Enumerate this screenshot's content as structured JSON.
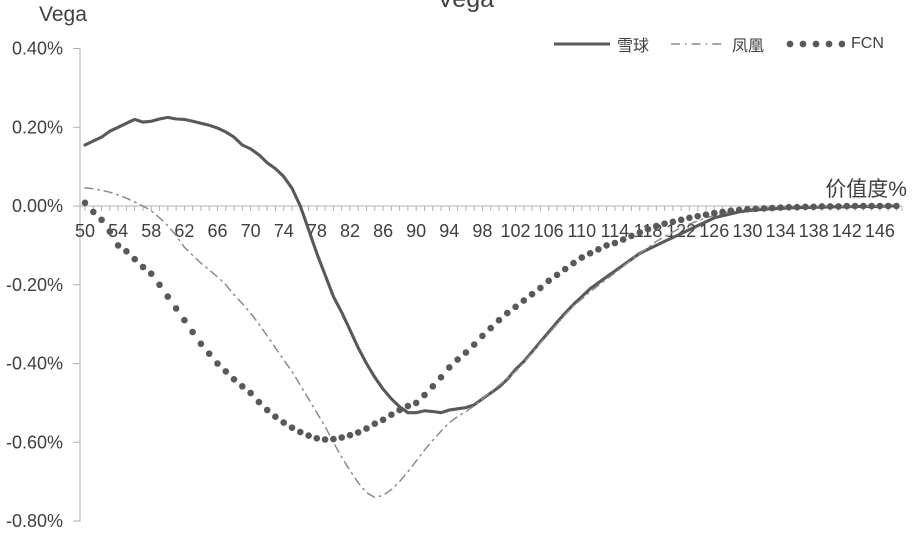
{
  "header": {
    "corner_label": "Vega",
    "chart_title": "Vega"
  },
  "colors": {
    "text": "#3f3f3f",
    "axis_line": "#b0b0b0",
    "series_dark": "#595959",
    "series_light": "#8c8c8c"
  },
  "legend": {
    "items": [
      {
        "label": "雪球",
        "marker": "solid-line",
        "color": "#595959"
      },
      {
        "label": "凤凰",
        "marker": "dash-dot-line",
        "color": "#8c8c8c"
      },
      {
        "label": "FCN",
        "marker": "dots",
        "color": "#595959"
      }
    ]
  },
  "chart_data": {
    "type": "line",
    "title": "Vega",
    "ylabel": "Vega",
    "xlabel": "价值度%",
    "grid": false,
    "legend_position": "top-right",
    "xlim": [
      50,
      148
    ],
    "ylim": [
      -0.8,
      0.4
    ],
    "x_minor_tick_step": 1,
    "x_tick_labels": [
      50,
      54,
      58,
      62,
      66,
      70,
      74,
      78,
      82,
      86,
      90,
      94,
      98,
      102,
      106,
      110,
      114,
      118,
      122,
      126,
      130,
      134,
      138,
      142,
      146
    ],
    "y_ticks": [
      {
        "label": "0.40%",
        "value": 0.4
      },
      {
        "label": "0.20%",
        "value": 0.2
      },
      {
        "label": "0.00%",
        "value": 0.0
      },
      {
        "label": "-0.20%",
        "value": -0.2
      },
      {
        "label": "-0.40%",
        "value": -0.4
      },
      {
        "label": "-0.60%",
        "value": -0.6
      },
      {
        "label": "-0.80%",
        "value": -0.8
      }
    ],
    "x": [
      50,
      51,
      52,
      53,
      54,
      55,
      56,
      57,
      58,
      59,
      60,
      61,
      62,
      63,
      64,
      65,
      66,
      67,
      68,
      69,
      70,
      71,
      72,
      73,
      74,
      75,
      76,
      77,
      78,
      79,
      80,
      81,
      82,
      83,
      84,
      85,
      86,
      87,
      88,
      89,
      90,
      91,
      92,
      93,
      94,
      95,
      96,
      97,
      98,
      99,
      100,
      101,
      102,
      103,
      104,
      105,
      106,
      107,
      108,
      109,
      110,
      111,
      112,
      113,
      114,
      115,
      116,
      117,
      118,
      119,
      120,
      121,
      122,
      123,
      124,
      125,
      126,
      127,
      128,
      129,
      130,
      131,
      132,
      133,
      134,
      135,
      136,
      137,
      138,
      139,
      140,
      141,
      142,
      143,
      144,
      145,
      146,
      147,
      148
    ],
    "series": [
      {
        "id": "xueqiu",
        "name": "雪球",
        "style": "solid",
        "color": "#595959",
        "width": 3.1,
        "values": [
          0.155,
          0.165,
          0.175,
          0.19,
          0.2,
          0.21,
          0.22,
          0.213,
          0.215,
          0.221,
          0.225,
          0.221,
          0.22,
          0.215,
          0.21,
          0.205,
          0.198,
          0.188,
          0.175,
          0.155,
          0.145,
          0.13,
          0.11,
          0.095,
          0.075,
          0.045,
          0.0,
          -0.06,
          -0.12,
          -0.175,
          -0.23,
          -0.27,
          -0.315,
          -0.36,
          -0.4,
          -0.435,
          -0.465,
          -0.49,
          -0.51,
          -0.525,
          -0.525,
          -0.52,
          -0.522,
          -0.525,
          -0.518,
          -0.515,
          -0.512,
          -0.505,
          -0.49,
          -0.475,
          -0.46,
          -0.44,
          -0.415,
          -0.395,
          -0.37,
          -0.345,
          -0.32,
          -0.295,
          -0.272,
          -0.25,
          -0.23,
          -0.21,
          -0.195,
          -0.18,
          -0.165,
          -0.15,
          -0.135,
          -0.12,
          -0.11,
          -0.1,
          -0.09,
          -0.08,
          -0.07,
          -0.06,
          -0.05,
          -0.04,
          -0.03,
          -0.025,
          -0.02,
          -0.015,
          -0.012,
          -0.01,
          -0.008,
          -0.007,
          -0.006,
          -0.005,
          -0.004,
          -0.004,
          -0.003,
          -0.003,
          -0.002,
          -0.002,
          -0.002,
          -0.001,
          -0.001,
          -0.001,
          -0.001,
          0.0,
          0.0
        ]
      },
      {
        "id": "fenghuang",
        "name": "凤凰",
        "style": "dash-dot",
        "color": "#8c8c8c",
        "width": 1.5,
        "values": [
          0.046,
          0.044,
          0.04,
          0.035,
          0.028,
          0.02,
          0.01,
          0.0,
          -0.012,
          -0.03,
          -0.05,
          -0.075,
          -0.105,
          -0.125,
          -0.145,
          -0.162,
          -0.18,
          -0.2,
          -0.225,
          -0.248,
          -0.272,
          -0.3,
          -0.33,
          -0.36,
          -0.391,
          -0.42,
          -0.455,
          -0.49,
          -0.525,
          -0.56,
          -0.6,
          -0.638,
          -0.672,
          -0.703,
          -0.728,
          -0.74,
          -0.735,
          -0.72,
          -0.7,
          -0.675,
          -0.648,
          -0.62,
          -0.595,
          -0.572,
          -0.55,
          -0.535,
          -0.522,
          -0.508,
          -0.49,
          -0.472,
          -0.455,
          -0.438,
          -0.42,
          -0.398,
          -0.372,
          -0.348,
          -0.325,
          -0.3,
          -0.276,
          -0.254,
          -0.236,
          -0.218,
          -0.202,
          -0.186,
          -0.17,
          -0.154,
          -0.136,
          -0.12,
          -0.106,
          -0.09,
          -0.078,
          -0.066,
          -0.055,
          -0.046,
          -0.038,
          -0.03,
          -0.024,
          -0.018,
          -0.014,
          -0.01,
          -0.008,
          -0.006,
          -0.004,
          -0.003,
          -0.002,
          -0.002,
          -0.001,
          -0.001,
          -0.001,
          0.0,
          0.0,
          0.0,
          0.0,
          0.0,
          0.0,
          0.0,
          0.0,
          0.0,
          0.0
        ]
      },
      {
        "id": "fcn",
        "name": "FCN",
        "style": "dots",
        "color": "#595959",
        "dot_radius": 3.3,
        "values": [
          0.008,
          -0.015,
          -0.035,
          -0.065,
          -0.1,
          -0.115,
          -0.135,
          -0.155,
          -0.172,
          -0.2,
          -0.23,
          -0.26,
          -0.29,
          -0.32,
          -0.35,
          -0.375,
          -0.4,
          -0.42,
          -0.44,
          -0.458,
          -0.475,
          -0.498,
          -0.518,
          -0.535,
          -0.55,
          -0.563,
          -0.574,
          -0.583,
          -0.59,
          -0.593,
          -0.592,
          -0.588,
          -0.582,
          -0.575,
          -0.565,
          -0.553,
          -0.543,
          -0.53,
          -0.518,
          -0.508,
          -0.5,
          -0.48,
          -0.458,
          -0.435,
          -0.41,
          -0.39,
          -0.372,
          -0.352,
          -0.33,
          -0.31,
          -0.29,
          -0.272,
          -0.256,
          -0.24,
          -0.224,
          -0.208,
          -0.19,
          -0.175,
          -0.16,
          -0.145,
          -0.131,
          -0.12,
          -0.11,
          -0.1,
          -0.094,
          -0.085,
          -0.076,
          -0.067,
          -0.059,
          -0.051,
          -0.045,
          -0.04,
          -0.035,
          -0.03,
          -0.026,
          -0.022,
          -0.018,
          -0.015,
          -0.012,
          -0.01,
          -0.008,
          -0.007,
          -0.006,
          -0.005,
          -0.004,
          -0.003,
          -0.003,
          -0.002,
          -0.002,
          -0.001,
          -0.001,
          -0.001,
          0.0,
          0.0,
          0.0,
          0.0,
          0.0,
          0.0,
          0.0
        ]
      }
    ]
  }
}
